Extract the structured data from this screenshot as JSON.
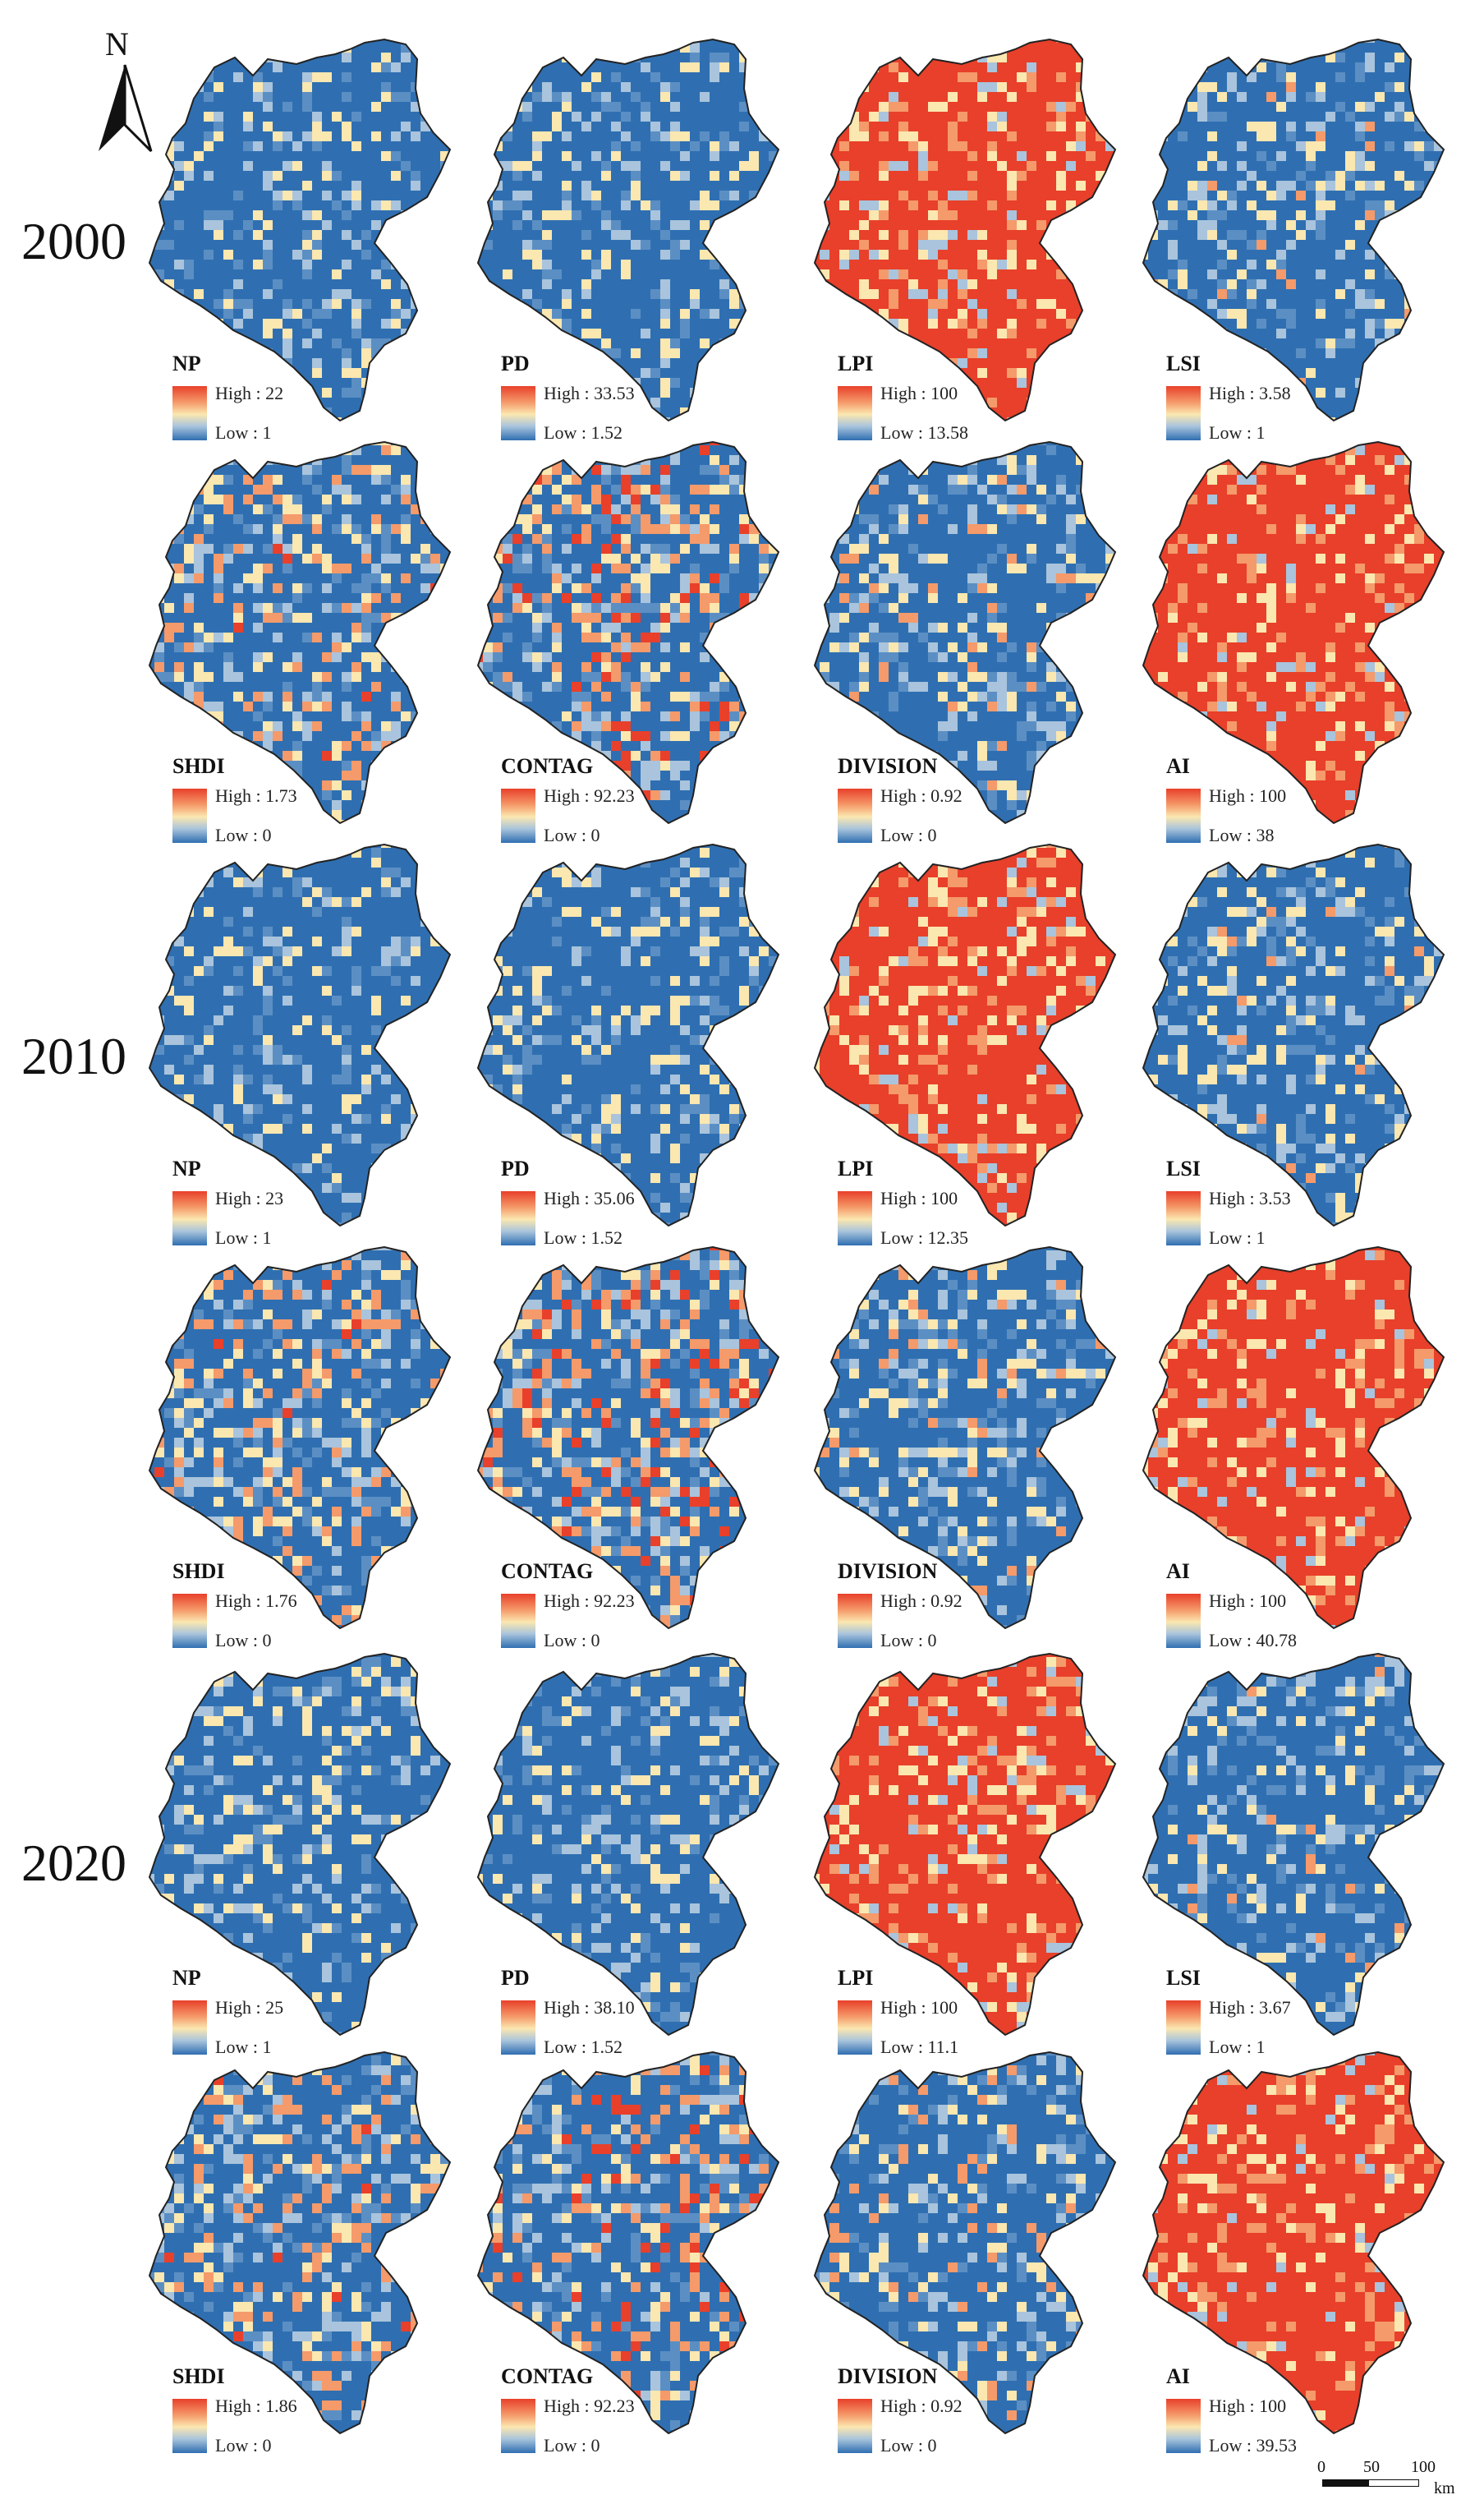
{
  "figure": {
    "north_label": "N",
    "year_labels": [
      "2000",
      "2010",
      "2020"
    ],
    "scale_bar": {
      "ticks": [
        "0",
        "50",
        "100"
      ],
      "unit": "km"
    },
    "colors": {
      "high": "#e8402a",
      "mid": "#fbe7b0",
      "low": "#2f6fb1",
      "outline": "#222222"
    },
    "groups": [
      {
        "year": "2000",
        "rows": [
          [
            {
              "metric": "NP",
              "high": "High : 22",
              "low": "Low : 1",
              "level": 0.2
            },
            {
              "metric": "PD",
              "high": "High : 33.53",
              "low": "Low : 1.52",
              "level": 0.2
            },
            {
              "metric": "LPI",
              "high": "High : 100",
              "low": "Low : 13.58",
              "level": 0.85
            },
            {
              "metric": "LSI",
              "high": "High : 3.58",
              "low": "Low : 1",
              "level": 0.25
            }
          ],
          [
            {
              "metric": "SHDI",
              "high": "High : 1.73",
              "low": "Low : 0",
              "level": 0.4
            },
            {
              "metric": "CONTAG",
              "high": "High : 92.23",
              "low": "Low : 0",
              "level": 0.5
            },
            {
              "metric": "DIVISION",
              "high": "High : 0.92",
              "low": "Low : 0",
              "level": 0.3
            },
            {
              "metric": "AI",
              "high": "High : 100",
              "low": "Low : 38",
              "level": 0.88
            }
          ]
        ]
      },
      {
        "year": "2010",
        "rows": [
          [
            {
              "metric": "NP",
              "high": "High : 23",
              "low": "Low : 1",
              "level": 0.2
            },
            {
              "metric": "PD",
              "high": "High : 35.06",
              "low": "Low : 1.52",
              "level": 0.2
            },
            {
              "metric": "LPI",
              "high": "High : 100",
              "low": "Low : 12.35",
              "level": 0.85
            },
            {
              "metric": "LSI",
              "high": "High : 3.53",
              "low": "Low : 1",
              "level": 0.25
            }
          ],
          [
            {
              "metric": "SHDI",
              "high": "High : 1.76",
              "low": "Low : 0",
              "level": 0.4
            },
            {
              "metric": "CONTAG",
              "high": "High : 92.23",
              "low": "Low : 0",
              "level": 0.5
            },
            {
              "metric": "DIVISION",
              "high": "High : 0.92",
              "low": "Low : 0",
              "level": 0.3
            },
            {
              "metric": "AI",
              "high": "High : 100",
              "low": "Low : 40.78",
              "level": 0.88
            }
          ]
        ]
      },
      {
        "year": "2020",
        "rows": [
          [
            {
              "metric": "NP",
              "high": "High : 25",
              "low": "Low : 1",
              "level": 0.2
            },
            {
              "metric": "PD",
              "high": "High : 38.10",
              "low": "Low : 1.52",
              "level": 0.2
            },
            {
              "metric": "LPI",
              "high": "High : 100",
              "low": "Low : 11.1",
              "level": 0.85
            },
            {
              "metric": "LSI",
              "high": "High : 3.67",
              "low": "Low : 1",
              "level": 0.25
            }
          ],
          [
            {
              "metric": "SHDI",
              "high": "High : 1.86",
              "low": "Low : 0",
              "level": 0.4
            },
            {
              "metric": "CONTAG",
              "high": "High : 92.23",
              "low": "Low : 0",
              "level": 0.5
            },
            {
              "metric": "DIVISION",
              "high": "High : 0.92",
              "low": "Low : 0",
              "level": 0.3
            },
            {
              "metric": "AI",
              "high": "High : 100",
              "low": "Low : 39.53",
              "level": 0.88
            }
          ]
        ]
      }
    ]
  }
}
